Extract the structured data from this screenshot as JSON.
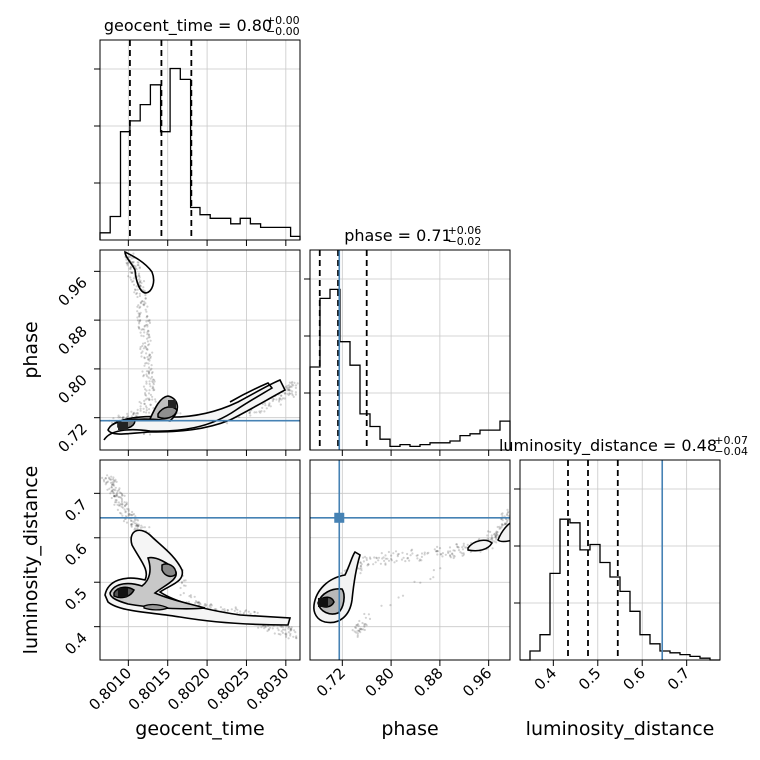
{
  "chart_data": {
    "type": "corner",
    "parameters": [
      "geocent_time",
      "phase",
      "luminosity_distance"
    ],
    "axis_labels": {
      "x": [
        "geocent_time",
        "phase",
        "luminosity_distance"
      ],
      "y": [
        "phase",
        "luminosity_distance"
      ]
    },
    "ranges": {
      "geocent_time": [
        0.80064,
        0.80318
      ],
      "phase": [
        0.667,
        0.995
      ],
      "luminosity_distance": [
        0.325,
        0.775
      ]
    },
    "ticks": {
      "geocent_time": [
        "0.8010",
        "0.8015",
        "0.8020",
        "0.8025",
        "0.8030"
      ],
      "phase": [
        "0.72",
        "0.80",
        "0.88",
        "0.96"
      ],
      "luminosity_distance": [
        "0.4",
        "0.5",
        "0.6",
        "0.7"
      ]
    },
    "tick_values": {
      "geocent_time": [
        0.801,
        0.8015,
        0.802,
        0.8025,
        0.803
      ],
      "phase": [
        0.72,
        0.8,
        0.88,
        0.96
      ],
      "luminosity_distance": [
        0.4,
        0.5,
        0.6,
        0.7
      ]
    },
    "injection": {
      "geocent_time": null,
      "phase": 0.715,
      "luminosity_distance": 0.645
    },
    "titles": [
      {
        "param": "geocent_time",
        "text": "geocent_time = 0.80",
        "plus": "+0.00",
        "minus": "−0.00"
      },
      {
        "param": "phase",
        "text": "phase = 0.71",
        "plus": "+0.06",
        "minus": "−0.02"
      },
      {
        "param": "luminosity_distance",
        "text": "luminosity_distance = 0.48",
        "plus": "+0.07",
        "minus": "−0.04"
      }
    ],
    "quantiles": {
      "geocent_time": [
        0.80102,
        0.80142,
        0.8018
      ],
      "phase": [
        0.683,
        0.713,
        0.76
      ],
      "luminosity_distance": [
        0.433,
        0.478,
        0.545
      ]
    },
    "histograms": {
      "geocent_time": {
        "edges": [
          0.80064,
          0.80077,
          0.8009,
          0.80102,
          0.80115,
          0.80128,
          0.80141,
          0.80153,
          0.80166,
          0.80179,
          0.80191,
          0.80204,
          0.80217,
          0.8023,
          0.80242,
          0.80255,
          0.80268,
          0.8028,
          0.80293,
          0.80306,
          0.80318
        ],
        "counts": [
          0.04,
          0.13,
          0.6,
          0.66,
          0.75,
          0.86,
          0.6,
          0.95,
          0.89,
          0.18,
          0.14,
          0.12,
          0.12,
          0.09,
          0.12,
          0.09,
          0.07,
          0.07,
          0.07,
          0.02
        ]
      },
      "phase": {
        "edges": [
          0.667,
          0.6834,
          0.6998,
          0.7162,
          0.7326,
          0.749,
          0.7654,
          0.7818,
          0.7982,
          0.8146,
          0.831,
          0.8474,
          0.8638,
          0.8802,
          0.8966,
          0.913,
          0.9294,
          0.9458,
          0.9622,
          0.9786,
          0.995
        ],
        "counts": [
          0.46,
          0.84,
          0.89,
          0.6,
          0.47,
          0.2,
          0.13,
          0.06,
          0.02,
          0.03,
          0.02,
          0.03,
          0.04,
          0.04,
          0.05,
          0.08,
          0.09,
          0.11,
          0.11,
          0.16
        ]
      },
      "luminosity_distance": {
        "edges": [
          0.325,
          0.3475,
          0.37,
          0.3925,
          0.415,
          0.4375,
          0.46,
          0.4825,
          0.505,
          0.5275,
          0.55,
          0.5725,
          0.595,
          0.6175,
          0.64,
          0.6625,
          0.685,
          0.7075,
          0.73,
          0.7525,
          0.775
        ],
        "counts": [
          0.0,
          0.05,
          0.14,
          0.48,
          0.78,
          0.76,
          0.61,
          0.64,
          0.54,
          0.46,
          0.38,
          0.27,
          0.14,
          0.09,
          0.05,
          0.04,
          0.03,
          0.02,
          0.01,
          0.0
        ]
      }
    },
    "scatter_2d": [
      {
        "x": "geocent_time",
        "y": "phase",
        "points": [
          [
            0.801,
            0.985
          ],
          [
            0.80105,
            0.97
          ],
          [
            0.8011,
            0.95
          ],
          [
            0.80115,
            0.93
          ],
          [
            0.80118,
            0.9
          ],
          [
            0.8012,
            0.87
          ],
          [
            0.80122,
            0.84
          ],
          [
            0.80124,
            0.81
          ],
          [
            0.80126,
            0.78
          ],
          [
            0.80128,
            0.75
          ],
          [
            0.80115,
            0.725
          ],
          [
            0.80095,
            0.715
          ],
          [
            0.8008,
            0.705
          ],
          [
            0.8012,
            0.7
          ],
          [
            0.8016,
            0.72
          ],
          [
            0.80175,
            0.715
          ],
          [
            0.8022,
            0.72
          ],
          [
            0.8026,
            0.735
          ],
          [
            0.8029,
            0.75
          ],
          [
            0.80305,
            0.765
          ],
          [
            0.8031,
            0.77
          ]
        ]
      },
      {
        "x": "geocent_time",
        "y": "luminosity_distance",
        "points": [
          [
            0.8007,
            0.74
          ],
          [
            0.8008,
            0.72
          ],
          [
            0.80085,
            0.7
          ],
          [
            0.8009,
            0.68
          ],
          [
            0.80098,
            0.65
          ],
          [
            0.8011,
            0.63
          ],
          [
            0.8012,
            0.61
          ],
          [
            0.80125,
            0.58
          ],
          [
            0.80135,
            0.56
          ],
          [
            0.80148,
            0.545
          ],
          [
            0.8016,
            0.53
          ],
          [
            0.8018,
            0.445
          ],
          [
            0.802,
            0.44
          ],
          [
            0.8022,
            0.432
          ],
          [
            0.8024,
            0.428
          ],
          [
            0.8026,
            0.42
          ],
          [
            0.8028,
            0.405
          ],
          [
            0.803,
            0.392
          ],
          [
            0.8031,
            0.383
          ]
        ]
      },
      {
        "x": "phase",
        "y": "luminosity_distance",
        "points": [
          [
            0.69,
            0.46
          ],
          [
            0.7,
            0.45
          ],
          [
            0.72,
            0.5
          ],
          [
            0.74,
            0.53
          ],
          [
            0.76,
            0.548
          ],
          [
            0.8,
            0.555
          ],
          [
            0.85,
            0.562
          ],
          [
            0.9,
            0.57
          ],
          [
            0.94,
            0.58
          ],
          [
            0.96,
            0.59
          ],
          [
            0.975,
            0.61
          ],
          [
            0.99,
            0.64
          ],
          [
            0.995,
            0.66
          ],
          [
            0.745,
            0.4
          ],
          [
            0.755,
            0.39
          ]
        ]
      }
    ]
  }
}
